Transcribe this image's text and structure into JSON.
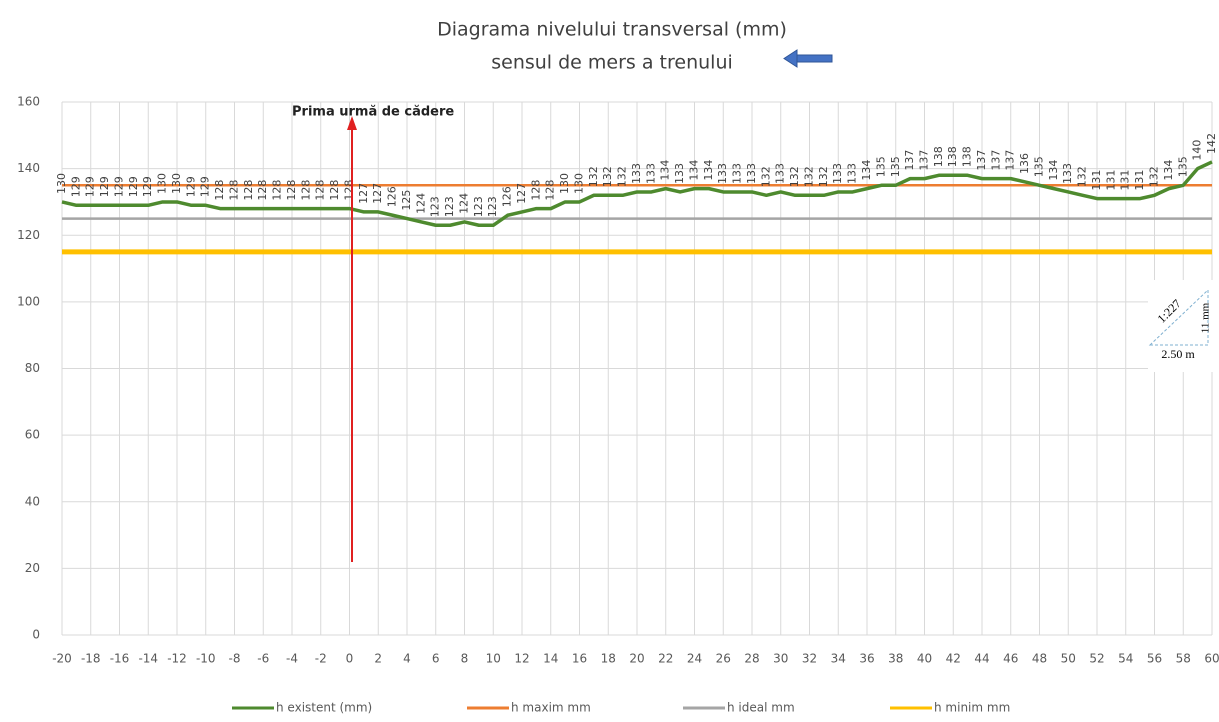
{
  "chart_data": {
    "type": "line",
    "title": "Diagrama nivelului transversal (mm)",
    "subtitle": "sensul de mers a trenului",
    "annotations": [
      "Prima urmă de cădere",
      "1:227",
      "11 mm",
      "2.50 m"
    ],
    "x": [
      -20,
      -19,
      -18,
      -17,
      -16,
      -15,
      -14,
      -13,
      -12,
      -11,
      -10,
      -9,
      -8,
      -7,
      -6,
      -5,
      -4,
      -3,
      -2,
      -1,
      0,
      1,
      2,
      3,
      4,
      5,
      6,
      7,
      8,
      9,
      10,
      11,
      12,
      13,
      14,
      15,
      16,
      17,
      18,
      19,
      20,
      21,
      22,
      23,
      24,
      25,
      26,
      27,
      28,
      29,
      30,
      31,
      32,
      33,
      34,
      35,
      36,
      37,
      38,
      39,
      40,
      41,
      42,
      43,
      44,
      45,
      46,
      47,
      48,
      49,
      50,
      51,
      52,
      53,
      54,
      55,
      56,
      57,
      58,
      59,
      60
    ],
    "series": [
      {
        "name": "h existent (mm)",
        "color": "#4e8a2e",
        "labels": true,
        "values": [
          130,
          129,
          129,
          129,
          129,
          129,
          129,
          130,
          130,
          129,
          129,
          128,
          128,
          128,
          128,
          128,
          128,
          128,
          128,
          128,
          128,
          127,
          127,
          126,
          125,
          124,
          123,
          123,
          124,
          123,
          123,
          126,
          127,
          128,
          128,
          130,
          130,
          132,
          132,
          132,
          133,
          133,
          134,
          133,
          134,
          134,
          133,
          133,
          133,
          132,
          133,
          132,
          132,
          132,
          133,
          133,
          134,
          135,
          135,
          137,
          137,
          138,
          138,
          138,
          137,
          137,
          137,
          136,
          135,
          134,
          133,
          132,
          131,
          131,
          131,
          131,
          132,
          134,
          135,
          140,
          142
        ]
      },
      {
        "name": "h maxim mm",
        "color": "#ed7d31",
        "values": [
          135,
          135,
          135,
          135,
          135,
          135,
          135,
          135,
          135,
          135,
          135,
          135,
          135,
          135,
          135,
          135,
          135,
          135,
          135,
          135,
          135,
          135,
          135,
          135,
          135,
          135,
          135,
          135,
          135,
          135,
          135,
          135,
          135,
          135,
          135,
          135,
          135,
          135,
          135,
          135,
          135,
          135,
          135,
          135,
          135,
          135,
          135,
          135,
          135,
          135,
          135,
          135,
          135,
          135,
          135,
          135,
          135,
          135,
          135,
          135,
          135,
          135,
          135,
          135,
          135,
          135,
          135,
          135,
          135,
          135,
          135,
          135,
          135,
          135,
          135,
          135,
          135,
          135,
          135,
          135,
          135
        ]
      },
      {
        "name": "h ideal mm",
        "color": "#a5a5a5",
        "values": [
          125,
          125,
          125,
          125,
          125,
          125,
          125,
          125,
          125,
          125,
          125,
          125,
          125,
          125,
          125,
          125,
          125,
          125,
          125,
          125,
          125,
          125,
          125,
          125,
          125,
          125,
          125,
          125,
          125,
          125,
          125,
          125,
          125,
          125,
          125,
          125,
          125,
          125,
          125,
          125,
          125,
          125,
          125,
          125,
          125,
          125,
          125,
          125,
          125,
          125,
          125,
          125,
          125,
          125,
          125,
          125,
          125,
          125,
          125,
          125,
          125,
          125,
          125,
          125,
          125,
          125,
          125,
          125,
          125,
          125,
          125,
          125,
          125,
          125,
          125,
          125,
          125,
          125,
          125,
          125,
          125
        ]
      },
      {
        "name": "h minim mm",
        "color": "#ffc000",
        "values": [
          115,
          115,
          115,
          115,
          115,
          115,
          115,
          115,
          115,
          115,
          115,
          115,
          115,
          115,
          115,
          115,
          115,
          115,
          115,
          115,
          115,
          115,
          115,
          115,
          115,
          115,
          115,
          115,
          115,
          115,
          115,
          115,
          115,
          115,
          115,
          115,
          115,
          115,
          115,
          115,
          115,
          115,
          115,
          115,
          115,
          115,
          115,
          115,
          115,
          115,
          115,
          115,
          115,
          115,
          115,
          115,
          115,
          115,
          115,
          115,
          115,
          115,
          115,
          115,
          115,
          115,
          115,
          115,
          115,
          115,
          115,
          115,
          115,
          115,
          115,
          115,
          115,
          115,
          115,
          115,
          115
        ]
      }
    ],
    "xlim": [
      -20,
      60
    ],
    "xticks": [
      -20,
      -18,
      -16,
      -14,
      -12,
      -10,
      -8,
      -6,
      -4,
      -2,
      0,
      2,
      4,
      6,
      8,
      10,
      12,
      14,
      16,
      18,
      20,
      22,
      24,
      26,
      28,
      30,
      32,
      34,
      36,
      38,
      40,
      42,
      44,
      46,
      48,
      50,
      52,
      54,
      56,
      58,
      60
    ],
    "ylim": [
      0,
      160
    ],
    "yticks": [
      0,
      20,
      40,
      60,
      80,
      100,
      120,
      140,
      160
    ],
    "grid": true
  }
}
